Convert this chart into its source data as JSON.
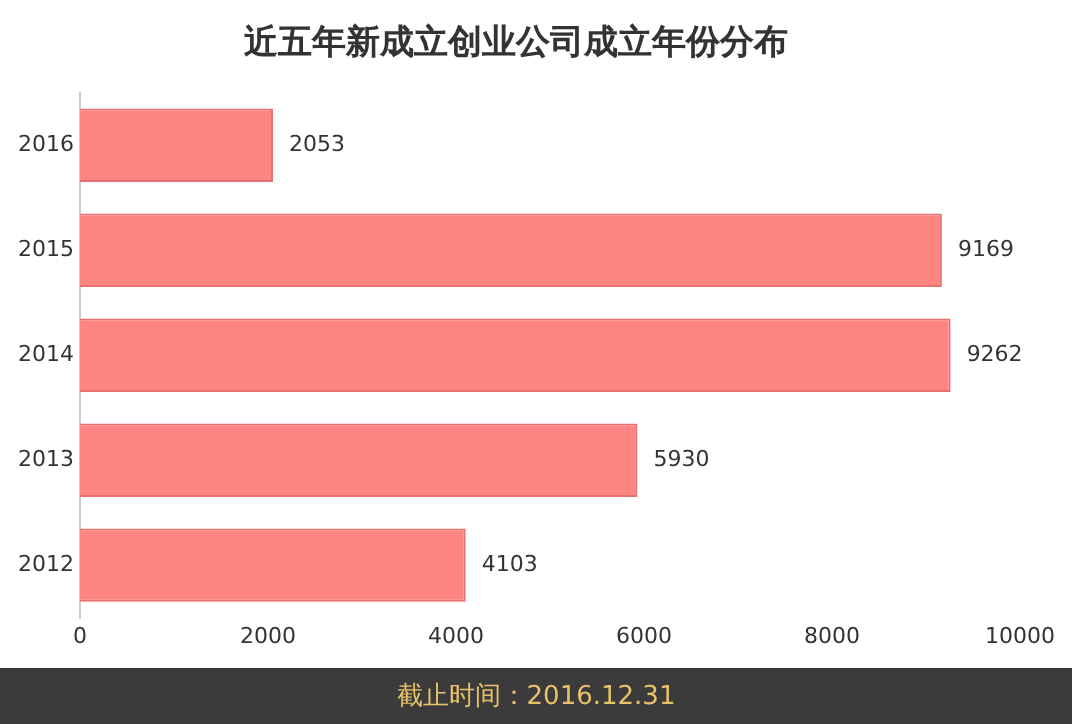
{
  "chart_data": {
    "type": "bar",
    "orientation": "horizontal",
    "title": "近五年新成立创业公司成立年份分布",
    "categories": [
      "2016",
      "2015",
      "2014",
      "2013",
      "2012"
    ],
    "values": [
      2053,
      9169,
      9262,
      5930,
      4103
    ],
    "color": "#ff8583",
    "xlim": [
      0,
      10000
    ],
    "xticks": [
      0,
      2000,
      4000,
      6000,
      8000,
      10000
    ],
    "data_labels": true,
    "grid": false,
    "annotations": [
      "截止时间：2016.12.31"
    ]
  }
}
